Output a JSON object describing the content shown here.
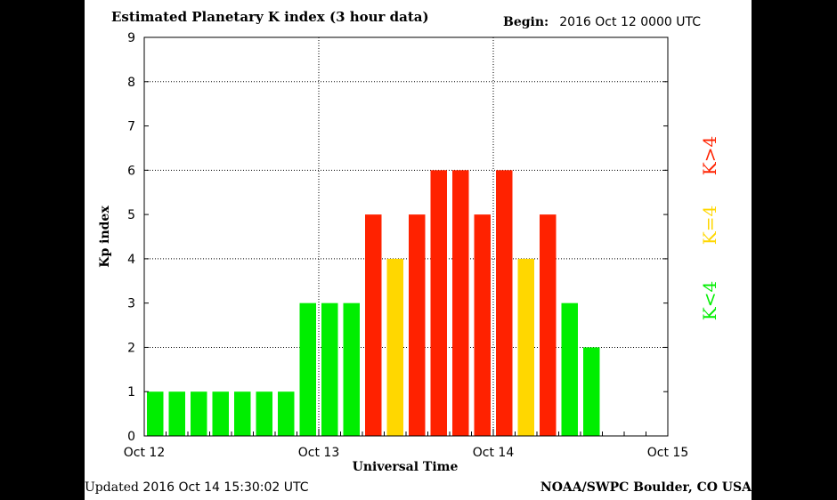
{
  "header": {
    "title": "Estimated Planetary K index (3 hour data)",
    "begin_label": "Begin:",
    "begin_value": "2016 Oct 12 0000 UTC"
  },
  "footer": {
    "updated_label": "Updated",
    "updated_value": "2016 Oct 14 15:30:02 UTC",
    "credit": "NOAA/SWPC Boulder, CO USA"
  },
  "colors": {
    "low": "#00ee00",
    "storm_threshold": "#ffd700",
    "high": "#ff2200"
  },
  "chart_data": {
    "type": "bar",
    "title": "Estimated Planetary K index (3 hour data)",
    "xlabel": "Universal Time",
    "ylabel": "Kp index",
    "ylim": [
      0,
      9
    ],
    "yticks": [
      "0",
      "1",
      "2",
      "3",
      "4",
      "5",
      "6",
      "7",
      "8",
      "9"
    ],
    "xtick_labels": [
      "Oct 12",
      "Oct 13",
      "Oct 14",
      "Oct 15"
    ],
    "grid": true,
    "interval_hours": 3,
    "values": [
      1,
      1,
      1,
      1,
      1,
      1,
      1,
      3,
      3,
      3,
      5,
      4,
      5,
      6,
      6,
      5,
      6,
      4,
      5,
      3,
      2
    ],
    "legend": [
      {
        "label": "K<4",
        "color_key": "low"
      },
      {
        "label": "K=4",
        "color_key": "storm_threshold"
      },
      {
        "label": "K>4",
        "color_key": "high"
      }
    ]
  }
}
